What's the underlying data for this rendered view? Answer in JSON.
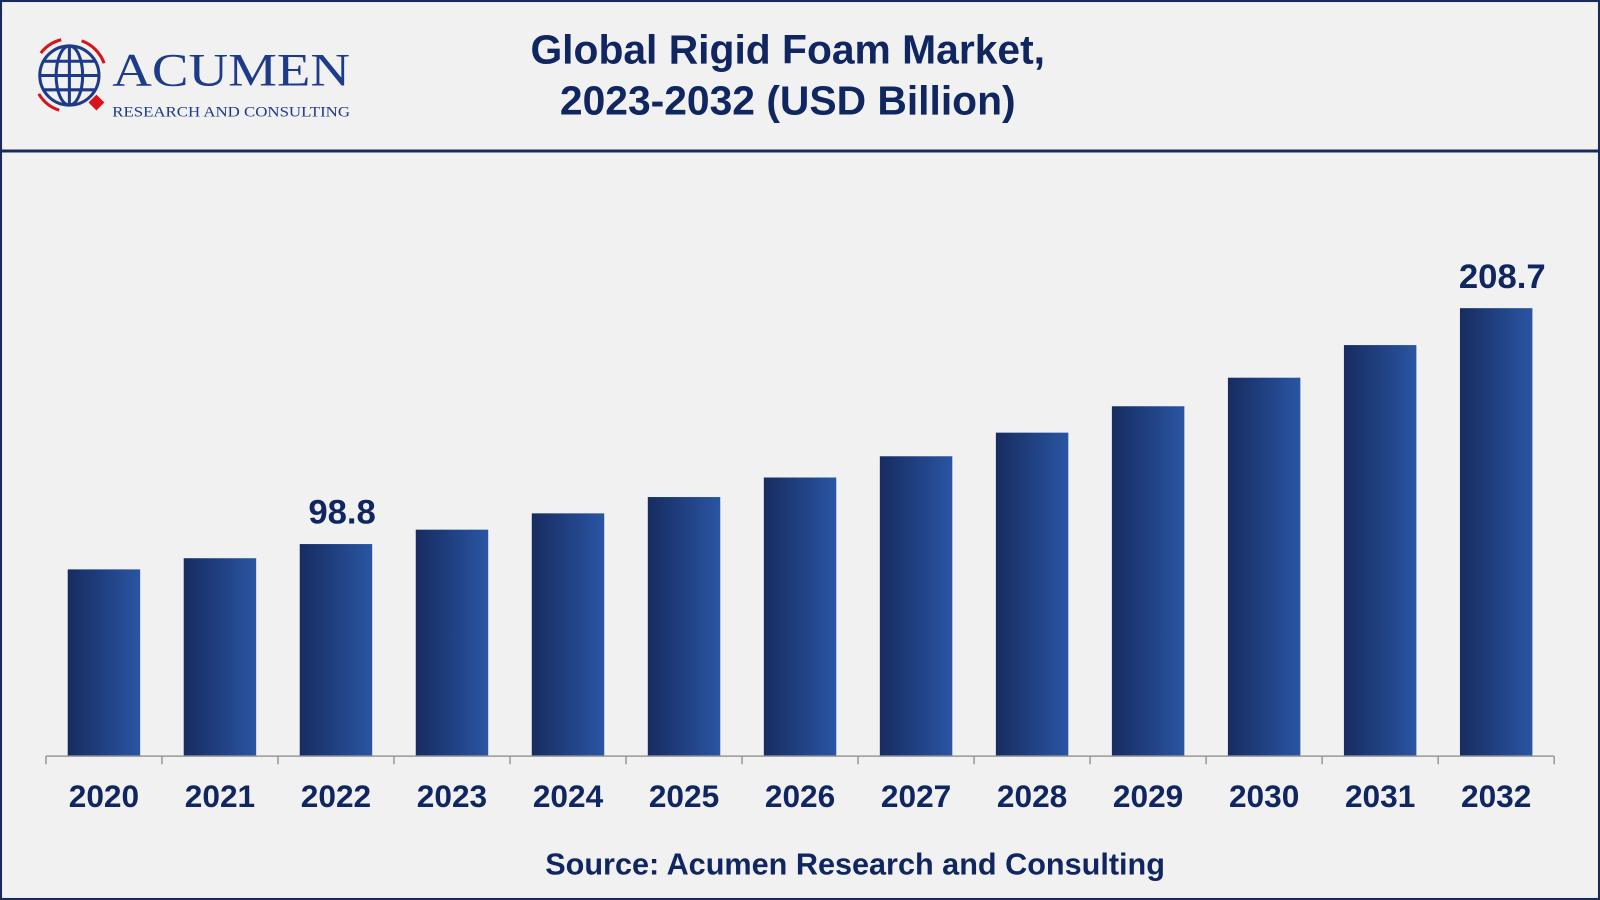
{
  "header": {
    "title_line1": "Global Rigid Foam Market,",
    "title_line2": "2023-2032 (USD Billion)",
    "logo_text": "ACUMEN",
    "logo_subtext": "RESEARCH AND CONSULTING"
  },
  "source": "Source: Acumen Research and Consulting",
  "colors": {
    "bar_dark": "#172c60",
    "bar_light": "#2a55a3",
    "text": "#0f2660",
    "frame": "#1b2a5e",
    "logo_red": "#d8131b"
  },
  "chart_data": {
    "type": "bar",
    "title": "Global Rigid Foam Market, 2023-2032 (USD Billion)",
    "categories": [
      "2020",
      "2021",
      "2022",
      "2023",
      "2024",
      "2025",
      "2026",
      "2027",
      "2028",
      "2029",
      "2030",
      "2031",
      "2032"
    ],
    "values": [
      87.0,
      92.2,
      98.8,
      105.5,
      113.1,
      120.7,
      129.8,
      139.7,
      150.7,
      163.0,
      176.3,
      191.5,
      208.7
    ],
    "data_labels": {
      "2022": "98.8",
      "2032": "208.7"
    },
    "xlabel": "",
    "ylabel": "",
    "ylim": [
      0,
      208.7
    ],
    "grid": false,
    "legend": "none"
  }
}
